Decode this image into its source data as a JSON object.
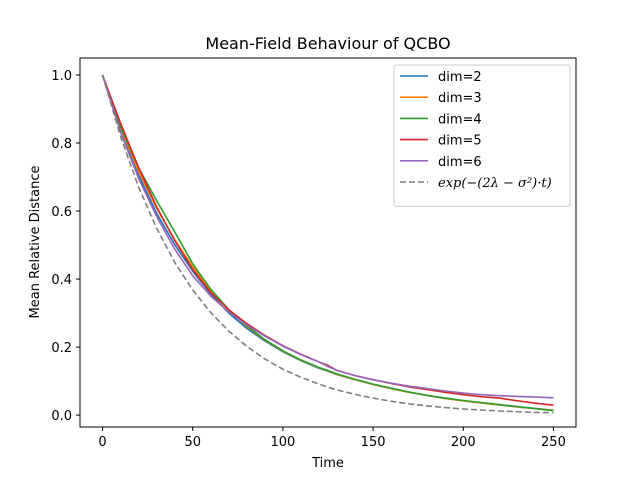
{
  "chart_data": {
    "type": "line",
    "title": "Mean-Field Behaviour of QCBO",
    "xlabel": "Time",
    "ylabel": "Mean Relative Distance",
    "xlim": [
      -12.5,
      262.5
    ],
    "ylim": [
      -0.035,
      1.05
    ],
    "xticks": [
      0,
      50,
      100,
      150,
      200,
      250
    ],
    "yticks": [
      0.0,
      0.2,
      0.4,
      0.6,
      0.8,
      1.0
    ],
    "xtick_labels": [
      "0",
      "50",
      "100",
      "150",
      "200",
      "250"
    ],
    "ytick_labels": [
      "0.0",
      "0.2",
      "0.4",
      "0.6",
      "0.8",
      "1.0"
    ],
    "grid": false,
    "legend_position": "top-right",
    "x": [
      0,
      10,
      20,
      30,
      40,
      50,
      60,
      70,
      80,
      90,
      100,
      110,
      120,
      125,
      130,
      140,
      150,
      160,
      170,
      180,
      190,
      200,
      210,
      220,
      230,
      240,
      250
    ],
    "series": [
      {
        "name": "dim=2",
        "color": "#1f77b4",
        "style": "solid",
        "values": [
          1.0,
          0.835,
          0.706,
          0.593,
          0.501,
          0.423,
          0.356,
          0.3,
          0.255,
          0.218,
          0.186,
          0.16,
          0.138,
          0.129,
          0.119,
          0.104,
          0.09,
          0.078,
          0.067,
          0.058,
          0.049,
          0.042,
          0.036,
          0.03,
          0.024,
          0.019,
          0.014
        ]
      },
      {
        "name": "dim=3",
        "color": "#ff7f0e",
        "style": "solid",
        "values": [
          1.0,
          0.845,
          0.716,
          0.608,
          0.516,
          0.436,
          0.366,
          0.308,
          0.26,
          0.221,
          0.188,
          0.161,
          0.139,
          0.13,
          0.12,
          0.104,
          0.09,
          0.078,
          0.067,
          0.058,
          0.049,
          0.042,
          0.036,
          0.03,
          0.024,
          0.019,
          0.014
        ]
      },
      {
        "name": "dim=4",
        "color": "#2ca02c",
        "style": "solid",
        "values": [
          1.0,
          0.848,
          0.727,
          0.63,
          0.539,
          0.445,
          0.37,
          0.31,
          0.262,
          0.222,
          0.189,
          0.162,
          0.14,
          0.131,
          0.121,
          0.105,
          0.091,
          0.079,
          0.068,
          0.058,
          0.05,
          0.043,
          0.037,
          0.031,
          0.025,
          0.019,
          0.013
        ]
      },
      {
        "name": "dim=5",
        "color": "#d62728",
        "style": "solid",
        "values": [
          1.0,
          0.858,
          0.728,
          0.612,
          0.513,
          0.428,
          0.36,
          0.31,
          0.269,
          0.234,
          0.204,
          0.179,
          0.156,
          0.146,
          0.131,
          0.116,
          0.104,
          0.093,
          0.083,
          0.075,
          0.067,
          0.06,
          0.054,
          0.05,
          0.042,
          0.035,
          0.029
        ]
      },
      {
        "name": "dim=6",
        "color": "#9467bd",
        "style": "solid",
        "values": [
          1.0,
          0.832,
          0.696,
          0.584,
          0.488,
          0.41,
          0.35,
          0.303,
          0.265,
          0.232,
          0.203,
          0.178,
          0.156,
          0.143,
          0.131,
          0.116,
          0.104,
          0.094,
          0.085,
          0.078,
          0.071,
          0.065,
          0.06,
          0.057,
          0.055,
          0.053,
          0.051
        ]
      },
      {
        "name": "exp(−(2λ − σ²)·t)",
        "color": "#7f7f7f",
        "style": "dashed",
        "values": [
          1.0,
          0.819,
          0.67,
          0.549,
          0.449,
          0.368,
          0.301,
          0.247,
          0.202,
          0.165,
          0.135,
          0.111,
          0.091,
          0.082,
          0.074,
          0.061,
          0.05,
          0.041,
          0.033,
          0.027,
          0.022,
          0.018,
          0.015,
          0.012,
          0.01,
          0.008,
          0.007
        ]
      }
    ]
  }
}
